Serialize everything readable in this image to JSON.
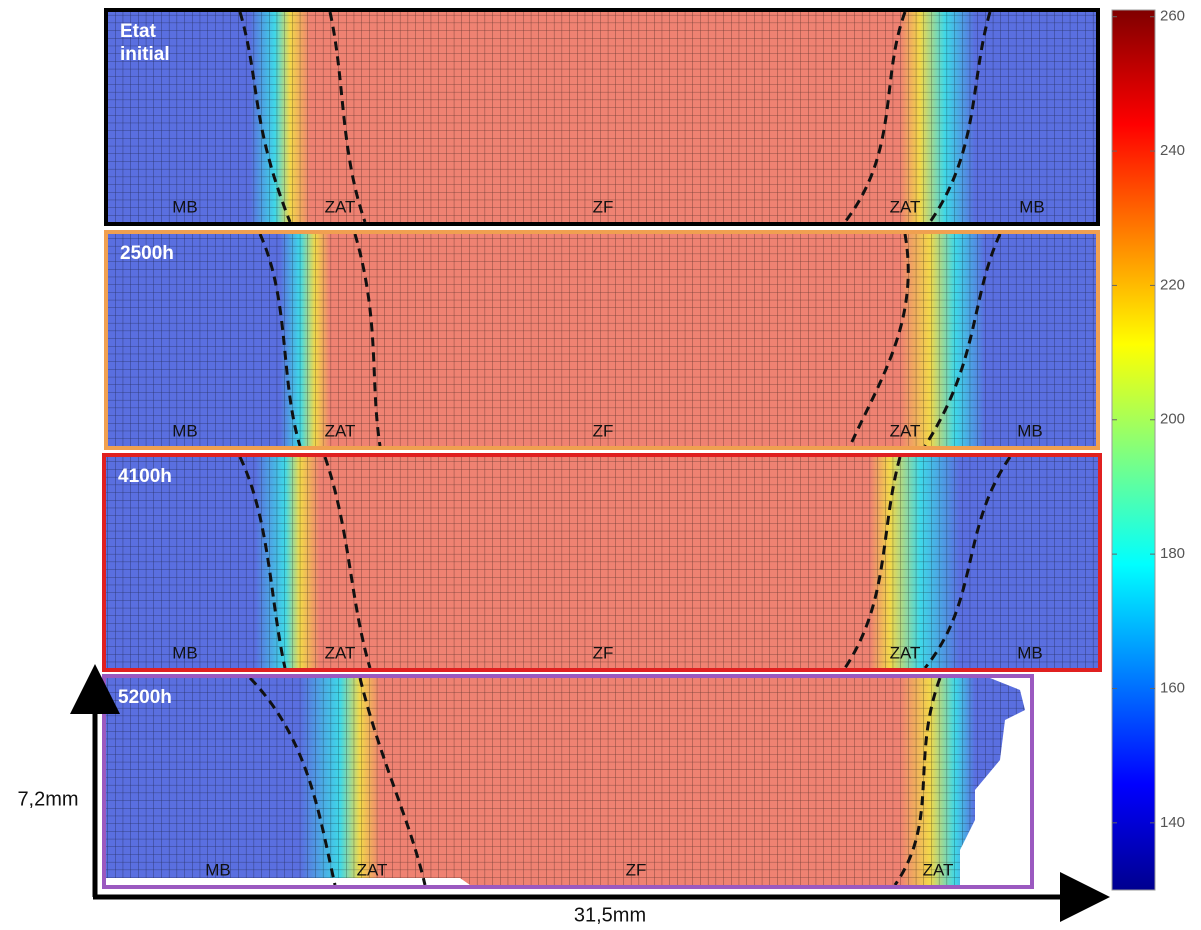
{
  "panels": [
    {
      "label": "Etat initial",
      "zones": [
        "MB",
        "ZAT",
        "ZF",
        "ZAT",
        "MB"
      ]
    },
    {
      "label": "2500h",
      "zones": [
        "MB",
        "ZAT",
        "ZF",
        "ZAT",
        "MB"
      ]
    },
    {
      "label": "4100h",
      "zones": [
        "MB",
        "ZAT",
        "ZF",
        "ZAT",
        "MB"
      ]
    },
    {
      "label": "5200h",
      "zones": [
        "MB",
        "ZAT",
        "ZF",
        "ZAT"
      ]
    }
  ],
  "colorbar": {
    "lim": [
      130,
      261
    ],
    "ticks": [
      140,
      160,
      180,
      200,
      220,
      240,
      260
    ]
  },
  "dimensions": {
    "height": "7,2mm",
    "width": "31,5mm"
  }
}
